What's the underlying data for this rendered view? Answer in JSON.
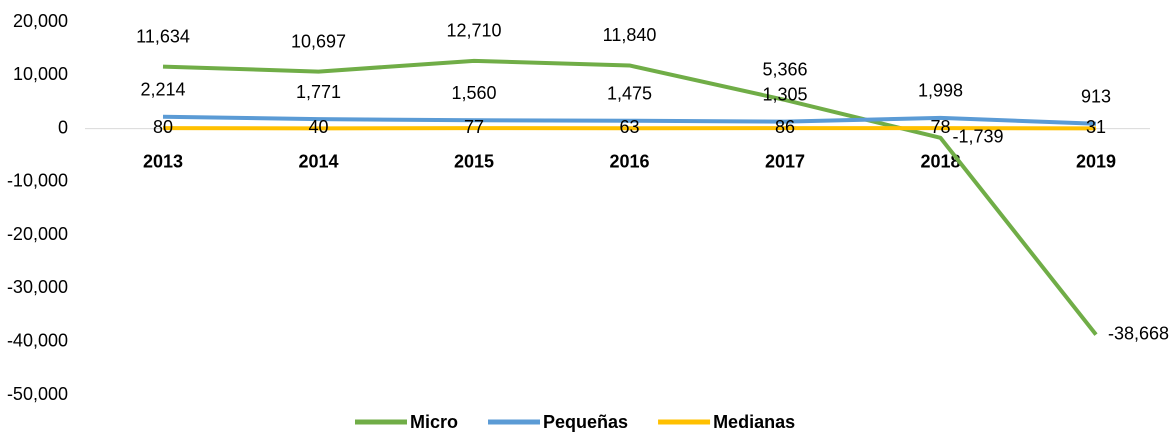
{
  "chart_data": {
    "type": "line",
    "categories": [
      "2013",
      "2014",
      "2015",
      "2016",
      "2017",
      "2018",
      "2019"
    ],
    "series": [
      {
        "name": "Micro",
        "color": "#70ad47",
        "values": [
          11634,
          10697,
          12710,
          11840,
          5366,
          -1739,
          -38668
        ],
        "value_labels": [
          "11,634",
          "10,697",
          "12,710",
          "11,840",
          "5,366",
          "-1,739",
          "-38,668"
        ]
      },
      {
        "name": "Pequeñas",
        "color": "#5b9bd5",
        "values": [
          2214,
          1771,
          1560,
          1475,
          1305,
          1998,
          913
        ],
        "value_labels": [
          "2,214",
          "1,771",
          "1,560",
          "1,475",
          "1,305",
          "1,998",
          "913"
        ]
      },
      {
        "name": "Medianas",
        "color": "#ffc000",
        "values": [
          80,
          40,
          77,
          63,
          86,
          78,
          31
        ],
        "value_labels": [
          "80",
          "40",
          "77",
          "63",
          "86",
          "78",
          "31"
        ]
      }
    ],
    "ylim": [
      -50000,
      20000
    ],
    "yticks": [
      {
        "value": -50000,
        "label": "-50,000"
      },
      {
        "value": -40000,
        "label": "-40,000"
      },
      {
        "value": -30000,
        "label": "-30,000"
      },
      {
        "value": -20000,
        "label": "-20,000"
      },
      {
        "value": -10000,
        "label": "-10,000"
      },
      0,
      {
        "value": 10000,
        "label": "10,000"
      },
      {
        "value": 20000,
        "label": "20,000"
      }
    ],
    "grid": false,
    "legend": "bottom"
  }
}
